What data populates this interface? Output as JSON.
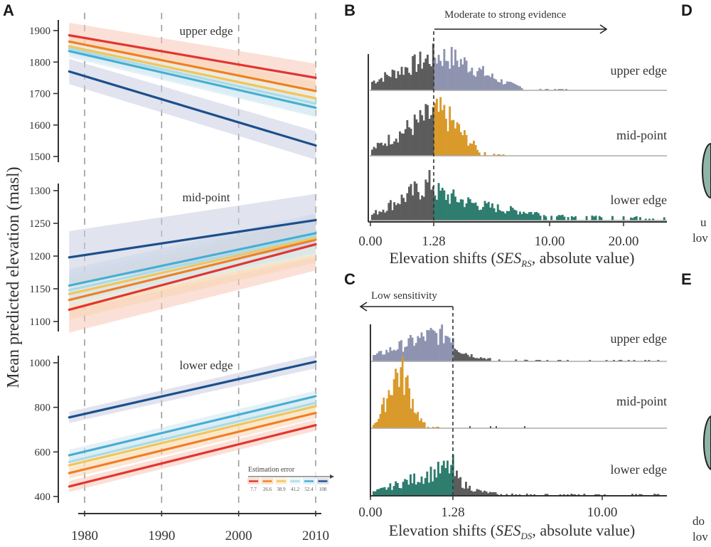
{
  "chart_data": [
    {
      "panel": "A",
      "type": "line",
      "ylabel": "Mean predicted elevation (masl)",
      "xlabel": "",
      "x_ticks": [
        1980,
        1990,
        2000,
        2010
      ],
      "x_range": [
        1978,
        2010
      ],
      "legend": {
        "title": "Estimation error",
        "placement": "bottom-right",
        "entries": [
          "7.7",
          "26.6",
          "38.9",
          "41.2",
          "52.4",
          "108"
        ]
      },
      "series_colors": [
        "#e3352f",
        "#f07f23",
        "#f2c45a",
        "#a9dbe6",
        "#47aed3",
        "#1b4f8c"
      ],
      "band_colors": [
        "#f7c6b6",
        "#f9d4b2",
        "#fbe7bd",
        "#dff1f5",
        "#cfe6f0",
        "#c8cce0"
      ],
      "subplots": [
        {
          "label": "upper edge",
          "y_ticks": [
            1500,
            1600,
            1700,
            1800,
            1900
          ],
          "ylim": [
            1480,
            1940
          ],
          "series": [
            {
              "name": "7.7",
              "x": [
                1978,
                2010
              ],
              "y": [
                1885,
                1750
              ],
              "ci": [
                40,
                45
              ]
            },
            {
              "name": "26.6",
              "x": [
                1978,
                2010
              ],
              "y": [
                1865,
                1708
              ],
              "ci": [
                25,
                30
              ]
            },
            {
              "name": "38.9",
              "x": [
                1978,
                2010
              ],
              "y": [
                1850,
                1685
              ],
              "ci": [
                20,
                30
              ]
            },
            {
              "name": "41.2",
              "x": [
                1978,
                2010
              ],
              "y": [
                1843,
                1668
              ],
              "ci": [
                20,
                40
              ]
            },
            {
              "name": "52.4",
              "x": [
                1978,
                2010
              ],
              "y": [
                1835,
                1655
              ],
              "ci": [
                20,
                30
              ]
            },
            {
              "name": "108",
              "x": [
                1978,
                2010
              ],
              "y": [
                1770,
                1535
              ],
              "ci": [
                40,
                45
              ]
            }
          ]
        },
        {
          "label": "mid-point",
          "y_ticks": [
            1100,
            1150,
            1200,
            1250,
            1300
          ],
          "ylim": [
            1080,
            1310
          ],
          "series": [
            {
              "name": "7.7",
              "x": [
                1978,
                2010
              ],
              "y": [
                1118,
                1218
              ],
              "ci": [
                35,
                40
              ]
            },
            {
              "name": "26.6",
              "x": [
                1978,
                2010
              ],
              "y": [
                1133,
                1225
              ],
              "ci": [
                30,
                35
              ]
            },
            {
              "name": "38.9",
              "x": [
                1978,
                2010
              ],
              "y": [
                1142,
                1228
              ],
              "ci": [
                25,
                30
              ]
            },
            {
              "name": "41.2",
              "x": [
                1978,
                2010
              ],
              "y": [
                1148,
                1231
              ],
              "ci": [
                25,
                30
              ]
            },
            {
              "name": "52.4",
              "x": [
                1978,
                2010
              ],
              "y": [
                1155,
                1235
              ],
              "ci": [
                25,
                30
              ]
            },
            {
              "name": "108",
              "x": [
                1978,
                2010
              ],
              "y": [
                1198,
                1255
              ],
              "ci": [
                40,
                40
              ]
            }
          ]
        },
        {
          "label": "lower edge",
          "y_ticks": [
            400,
            600,
            800,
            1000
          ],
          "ylim": [
            370,
            1040
          ],
          "series": [
            {
              "name": "7.7",
              "x": [
                1978,
                2010
              ],
              "y": [
                445,
                720
              ],
              "ci": [
                25,
                25
              ]
            },
            {
              "name": "26.6",
              "x": [
                1978,
                2010
              ],
              "y": [
                505,
                775
              ],
              "ci": [
                25,
                25
              ]
            },
            {
              "name": "38.9",
              "x": [
                1978,
                2010
              ],
              "y": [
                540,
                805
              ],
              "ci": [
                20,
                25
              ]
            },
            {
              "name": "41.2",
              "x": [
                1978,
                2010
              ],
              "y": [
                555,
                820
              ],
              "ci": [
                20,
                25
              ]
            },
            {
              "name": "52.4",
              "x": [
                1978,
                2010
              ],
              "y": [
                585,
                850
              ],
              "ci": [
                25,
                25
              ]
            },
            {
              "name": "108",
              "x": [
                1978,
                2010
              ],
              "y": [
                755,
                1005
              ],
              "ci": [
                25,
                30
              ]
            }
          ]
        }
      ]
    },
    {
      "panel": "B",
      "type": "bar",
      "title": "",
      "annotation": "Moderate to strong evidence",
      "annotation_direction": "right",
      "threshold": 1.28,
      "xlabel_prefix": "Elevation shifts (",
      "xlabel_symbol": "SES",
      "xlabel_subscript": "RS",
      "xlabel_suffix": ", absolute value)",
      "x_ticks": [
        "0.00",
        "1.28",
        "10.00",
        "20.00"
      ],
      "x_tick_values": [
        0,
        1.28,
        10,
        20
      ],
      "below_threshold_color": "#5c5c5c",
      "rows": [
        {
          "label": "upper edge",
          "color": "#8e93b0",
          "shape": "right-skewed, peak near threshold, tail to ~12"
        },
        {
          "label": "mid-point",
          "color": "#d99a2b",
          "shape": "peak near threshold, tail to ~4"
        },
        {
          "label": "lower edge",
          "color": "#2e7d6e",
          "shape": "peak near threshold, long tail to ~25"
        }
      ]
    },
    {
      "panel": "C",
      "type": "bar",
      "annotation": "Low sensitivity",
      "annotation_direction": "left",
      "threshold": 1.28,
      "xlabel_prefix": "Elevation shifts (",
      "xlabel_symbol": "SES",
      "xlabel_subscript": "DS",
      "xlabel_suffix": ", absolute value)",
      "x_ticks": [
        "0.00",
        "1.28",
        "10.00"
      ],
      "x_tick_values": [
        0,
        1.28,
        10
      ],
      "above_threshold_color": "#5c5c5c",
      "rows": [
        {
          "label": "upper edge",
          "color": "#8e93b0",
          "shape": "broad, below threshold mostly, sparse tail"
        },
        {
          "label": "mid-point",
          "color": "#d99a2b",
          "shape": "narrow peak near 0.45"
        },
        {
          "label": "lower edge",
          "color": "#2e7d6e",
          "shape": "rising to threshold, sparse tail"
        }
      ]
    }
  ],
  "panels": {
    "A": "A",
    "B": "B",
    "C": "C",
    "D": "D",
    "E": "E"
  },
  "cutoff_text": {
    "D_line1": "u",
    "D_line2": "lov",
    "E_line1": "do",
    "E_line2": "lov"
  }
}
